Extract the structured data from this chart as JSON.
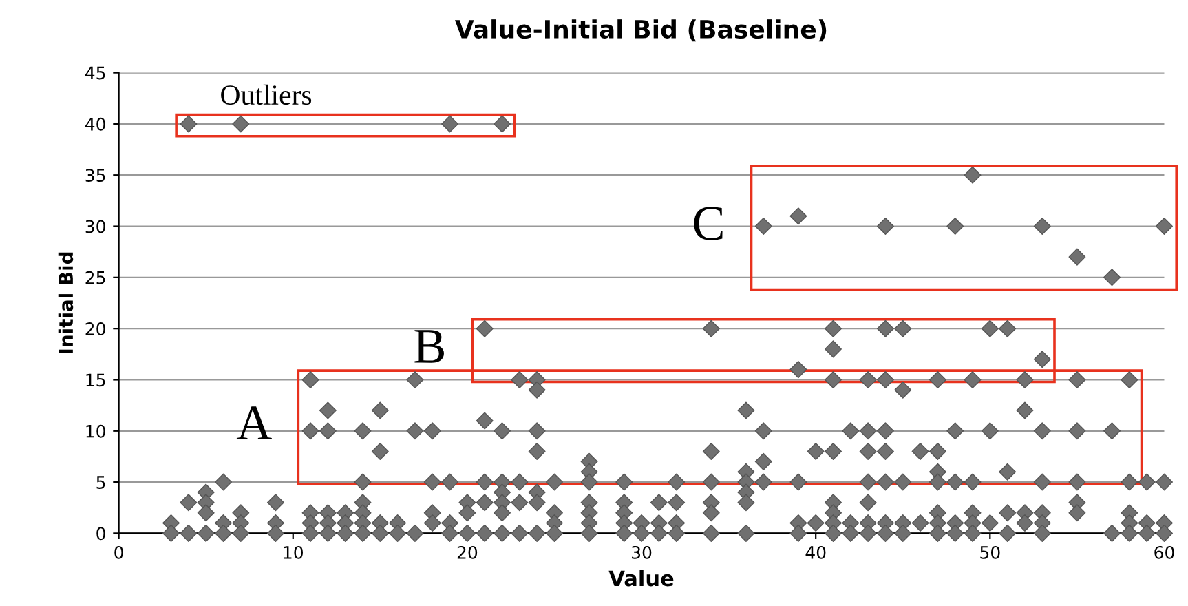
{
  "chart_data": {
    "type": "scatter",
    "title": "Value-Initial Bid (Baseline)",
    "xlabel": "Value",
    "ylabel": "Initial Bid",
    "xlim": [
      0,
      60
    ],
    "xticks": [
      0,
      10,
      20,
      30,
      40,
      50,
      60
    ],
    "ylim": [
      0,
      45
    ],
    "yticks": [
      0,
      5,
      10,
      15,
      20,
      25,
      30,
      35,
      40,
      45
    ],
    "grid": "y",
    "legend": false,
    "marker": "diamond",
    "series": [
      {
        "name": "Outliers",
        "color": "#707070",
        "x": [
          4,
          7,
          19,
          22
        ],
        "values": [
          40,
          40,
          40,
          40
        ]
      },
      {
        "name": "C",
        "color": "#707070",
        "x": [
          37,
          39,
          44,
          48,
          49,
          53,
          55,
          57,
          60
        ],
        "values": [
          30,
          31,
          30,
          30,
          35,
          30,
          27,
          25,
          30
        ]
      },
      {
        "name": "B",
        "color": "#707070",
        "x": [
          21,
          34,
          41,
          41,
          44,
          45,
          50,
          51,
          53,
          39
        ],
        "values": [
          20,
          20,
          20,
          18,
          20,
          20,
          20,
          20,
          17,
          16
        ]
      },
      {
        "name": "A",
        "color": "#707070",
        "x": [
          11,
          17,
          23,
          24,
          24,
          41,
          43,
          44,
          47,
          49,
          52,
          55,
          58,
          45,
          12,
          15,
          21,
          36,
          52,
          11,
          12,
          14,
          17,
          18,
          22,
          24,
          37,
          42,
          43,
          44,
          48,
          50,
          53,
          55,
          57,
          15,
          24,
          34,
          40,
          41,
          43,
          44,
          46,
          47,
          27,
          37,
          27,
          36,
          47,
          51
        ],
        "values": [
          15,
          15,
          15,
          15,
          14,
          15,
          15,
          15,
          15,
          15,
          15,
          15,
          15,
          14,
          12,
          12,
          11,
          12,
          12,
          10,
          10,
          10,
          10,
          10,
          10,
          10,
          10,
          10,
          10,
          10,
          10,
          10,
          10,
          10,
          10,
          8,
          8,
          8,
          8,
          8,
          8,
          8,
          8,
          8,
          7,
          7,
          6,
          6,
          6,
          6
        ]
      },
      {
        "color": "#707070",
        "x": [
          6,
          14,
          18,
          19,
          21,
          22,
          23,
          25,
          27,
          29,
          32,
          34,
          36,
          37,
          39,
          43,
          44,
          45,
          47,
          48,
          49,
          53,
          55,
          58,
          59,
          60,
          3,
          3,
          4,
          4,
          5,
          5,
          5,
          5,
          6,
          6,
          7,
          7,
          7,
          9,
          9,
          9,
          11,
          11,
          11,
          12,
          12,
          12,
          13,
          13,
          13,
          14,
          14,
          14,
          14,
          15,
          15,
          16,
          16,
          17,
          18,
          18,
          19,
          19,
          20,
          20,
          20,
          21,
          21,
          22,
          22,
          22,
          22,
          23,
          23,
          24,
          24,
          24,
          25,
          25,
          25,
          27,
          27,
          27,
          27,
          29,
          29,
          29,
          29,
          30,
          30,
          31,
          31,
          31,
          32,
          32,
          32,
          34,
          34,
          34,
          36,
          36,
          36,
          39,
          39,
          40,
          41,
          41,
          41,
          41,
          42,
          42,
          43,
          43,
          43,
          44,
          44,
          45,
          45,
          46,
          47,
          47,
          47,
          48,
          48,
          49,
          49,
          49,
          50,
          51,
          51,
          52,
          52,
          53,
          53,
          53,
          55,
          55,
          57,
          58,
          58,
          58,
          59,
          59,
          60,
          60
        ],
        "values": [
          5,
          5,
          5,
          5,
          5,
          5,
          5,
          5,
          5,
          5,
          5,
          5,
          5,
          5,
          5,
          5,
          5,
          5,
          5,
          5,
          5,
          5,
          5,
          5,
          5,
          5,
          1,
          0,
          3,
          0,
          4,
          3,
          2,
          0,
          1,
          0,
          2,
          1,
          0,
          3,
          1,
          0,
          2,
          1,
          0,
          2,
          1,
          0,
          2,
          1,
          0,
          3,
          2,
          1,
          0,
          1,
          0,
          1,
          0,
          0,
          2,
          1,
          1,
          0,
          3,
          2,
          0,
          3,
          0,
          4,
          3,
          2,
          0,
          3,
          0,
          4,
          3,
          0,
          2,
          1,
          0,
          3,
          2,
          1,
          0,
          3,
          2,
          1,
          0,
          1,
          0,
          3,
          1,
          0,
          3,
          1,
          0,
          3,
          2,
          0,
          4,
          3,
          0,
          1,
          0,
          1,
          3,
          2,
          1,
          0,
          1,
          0,
          3,
          1,
          0,
          1,
          0,
          1,
          0,
          1,
          2,
          1,
          0,
          1,
          0,
          2,
          1,
          0,
          1,
          2,
          0,
          2,
          1,
          2,
          1,
          0,
          3,
          2,
          0,
          2,
          1,
          0,
          1,
          0,
          1,
          0
        ]
      }
    ]
  }
}
